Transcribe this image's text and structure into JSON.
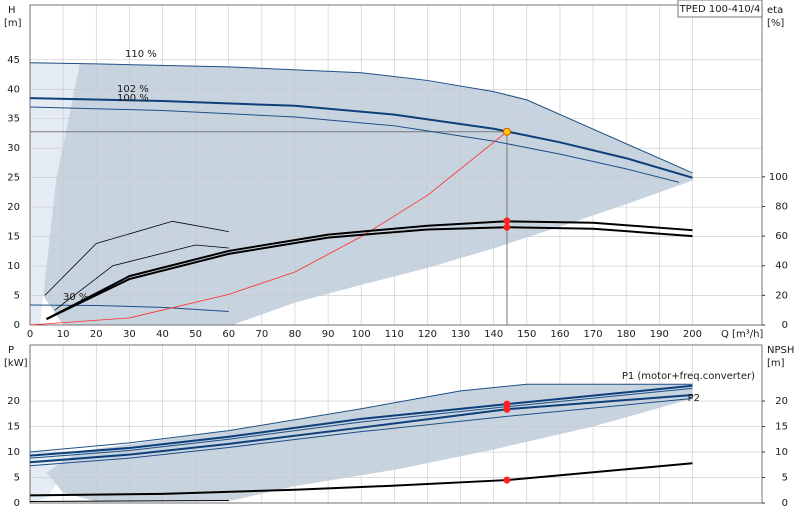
{
  "chart_data": [
    {
      "type": "line",
      "title": "TPED 100-410/4",
      "y_label": "H",
      "y_unit": "[m]",
      "y2_label": "eta",
      "y2_unit": "[%]",
      "x_label": "Q [m³/h]",
      "xlim": [
        0,
        221
      ],
      "ylim": [
        0,
        54.3
      ],
      "y2lim": [
        0,
        216
      ],
      "xticks": [
        0,
        10,
        20,
        30,
        40,
        50,
        60,
        70,
        80,
        90,
        100,
        110,
        120,
        130,
        140,
        150,
        160,
        170,
        180,
        190,
        200
      ],
      "yticks": [
        0,
        5,
        10,
        15,
        20,
        25,
        30,
        35,
        40,
        45
      ],
      "y2ticks": [
        0,
        20,
        40,
        60,
        80,
        100
      ],
      "show_xtick_labels": true,
      "grid": true,
      "areas": [
        {
          "color": "#e4ebf2",
          "x": [
            0,
            15,
            8,
            4,
            3,
            0
          ],
          "values": [
            44.5,
            44.3,
            25,
            5,
            0,
            0
          ]
        },
        {
          "color": "#c7d4e0",
          "x": [
            15,
            60,
            100,
            120,
            140,
            150,
            200,
            200,
            180,
            160,
            140,
            120,
            100,
            80,
            61,
            10,
            4,
            8
          ],
          "values": [
            44.3,
            43.8,
            42.8,
            41.5,
            39.6,
            38.2,
            25.8,
            24.5,
            20.5,
            16.7,
            13,
            9.7,
            6.8,
            3.8,
            0,
            0,
            5,
            25
          ]
        }
      ],
      "series": [
        {
          "name": "110 %",
          "color": "#1f4f86",
          "width": 1,
          "x": [
            0,
            20,
            60,
            100,
            120,
            140,
            150,
            200
          ],
          "values": [
            44.5,
            44.3,
            43.8,
            42.8,
            41.5,
            39.6,
            38.2,
            25.8
          ]
        },
        {
          "name": "102 %",
          "color": "#0d3f7a",
          "width": 2,
          "x": [
            0,
            40,
            80,
            110,
            140,
            160,
            180,
            200
          ],
          "values": [
            38.5,
            38,
            37.2,
            35.7,
            33.3,
            31,
            28.3,
            25
          ]
        },
        {
          "name": "100 %",
          "color": "#1f4f86",
          "width": 1,
          "x": [
            0,
            40,
            80,
            110,
            140,
            160,
            180,
            196
          ],
          "values": [
            37,
            36.4,
            35.3,
            33.8,
            31.2,
            29,
            26.5,
            24.2
          ]
        },
        {
          "name": "30 %",
          "color": "#1f4f86",
          "width": 1,
          "x": [
            0,
            20,
            40,
            60
          ],
          "values": [
            3.4,
            3.3,
            3,
            2.3
          ]
        },
        {
          "color": "#ff2a2a",
          "width": 0.8,
          "x": [
            0,
            30,
            60,
            80,
            100,
            120,
            144
          ],
          "values": [
            0,
            1.2,
            5.2,
            9,
            15,
            22,
            32.8
          ]
        },
        {
          "axis": "y2",
          "color": "#000000",
          "width": 2,
          "x": [
            5,
            30,
            60,
            90,
            120,
            144,
            170,
            200
          ],
          "values": [
            4,
            33,
            50,
            61,
            67,
            70,
            69,
            64
          ]
        },
        {
          "axis": "y2",
          "color": "#000000",
          "width": 2,
          "x": [
            5,
            30,
            60,
            90,
            120,
            144,
            170,
            200
          ],
          "values": [
            4,
            31,
            48,
            59,
            64.5,
            66,
            65,
            60
          ]
        },
        {
          "axis": "y2",
          "color": "#000000",
          "width": 0.8,
          "x": [
            4.5,
            20,
            43,
            60
          ],
          "values": [
            20,
            55,
            70,
            63
          ]
        },
        {
          "axis": "y2",
          "color": "#000000",
          "width": 0.8,
          "x": [
            7.5,
            25,
            50,
            60
          ],
          "values": [
            10,
            40,
            54,
            52
          ]
        }
      ],
      "points": [
        {
          "x": 144,
          "y": 32.8,
          "color": "#ffcc00"
        },
        {
          "x": 144,
          "y": 70.3,
          "axis": "y2",
          "color": "#ff2020"
        },
        {
          "x": 144,
          "y": 66,
          "axis": "y2",
          "color": "#ff2020"
        }
      ],
      "duty_point": {
        "x": 144,
        "y": 32.8
      }
    },
    {
      "type": "line",
      "y_label": "P",
      "y_unit": "[kW]",
      "y2_label": "NPSH",
      "y2_unit": "[m]",
      "xlim": [
        0,
        221
      ],
      "ylim": [
        0,
        31
      ],
      "y2lim": [
        0,
        31
      ],
      "xticks": [
        0,
        10,
        20,
        30,
        40,
        50,
        60,
        70,
        80,
        90,
        100,
        110,
        120,
        130,
        140,
        150,
        160,
        170,
        180,
        190,
        200
      ],
      "yticks": [
        0,
        5,
        10,
        15,
        20
      ],
      "y2ticks": [
        0,
        5,
        10,
        15,
        20
      ],
      "show_xtick_labels": false,
      "grid": true,
      "areas": [
        {
          "color": "#e4ebf2",
          "x": [
            0,
            15,
            5,
            0
          ],
          "values": [
            10,
            10.2,
            1,
            0
          ]
        },
        {
          "color": "#c7d4e0",
          "x": [
            15,
            60,
            100,
            130,
            150,
            200,
            200,
            170,
            140,
            110,
            80,
            61,
            20,
            10,
            5
          ],
          "values": [
            10.2,
            14.2,
            18.5,
            22,
            23.3,
            23.3,
            20.5,
            15,
            10.5,
            6.5,
            3.3,
            0.5,
            0.3,
            2,
            6
          ]
        }
      ],
      "series": [
        {
          "color": "#1f4f86",
          "width": 1,
          "x": [
            0,
            30,
            60,
            100,
            130,
            150,
            200
          ],
          "values": [
            10,
            11.8,
            14.2,
            18.5,
            22,
            23.3,
            23.3
          ]
        },
        {
          "name": "P1 (motor+freq.converter)",
          "color": "#0d3f7a",
          "width": 2,
          "x": [
            0,
            30,
            60,
            100,
            144,
            200
          ],
          "values": [
            9.3,
            10.8,
            13,
            16.5,
            19.4,
            23
          ]
        },
        {
          "color": "#1f4f86",
          "width": 1,
          "x": [
            0,
            30,
            60,
            100,
            144,
            200
          ],
          "values": [
            8.8,
            10.3,
            12.5,
            15.9,
            18.9,
            22.5
          ]
        },
        {
          "name": "P2",
          "color": "#0d3f7a",
          "width": 2,
          "x": [
            0,
            30,
            60,
            100,
            144,
            200
          ],
          "values": [
            8,
            9.5,
            11.6,
            14.8,
            18.4,
            21.2
          ]
        },
        {
          "color": "#1f4f86",
          "width": 1,
          "x": [
            0,
            30,
            60,
            100,
            144,
            200
          ],
          "values": [
            7.3,
            8.8,
            10.9,
            14,
            17,
            20.5
          ]
        },
        {
          "axis": "y2",
          "color": "#000000",
          "width": 2,
          "x": [
            0,
            40,
            80,
            110,
            144,
            200
          ],
          "values": [
            1.5,
            1.8,
            2.6,
            3.4,
            4.5,
            7.8
          ]
        },
        {
          "axis": "y2",
          "color": "#000000",
          "width": 1,
          "x": [
            0,
            60
          ],
          "values": [
            0.3,
            0.5
          ]
        }
      ],
      "points": [
        {
          "x": 144,
          "y": 19.4,
          "color": "#ff2020"
        },
        {
          "x": 144,
          "y": 18.4,
          "color": "#ff2020"
        },
        {
          "x": 144,
          "y": 4.5,
          "axis": "y2",
          "color": "#ff2020"
        }
      ]
    }
  ]
}
